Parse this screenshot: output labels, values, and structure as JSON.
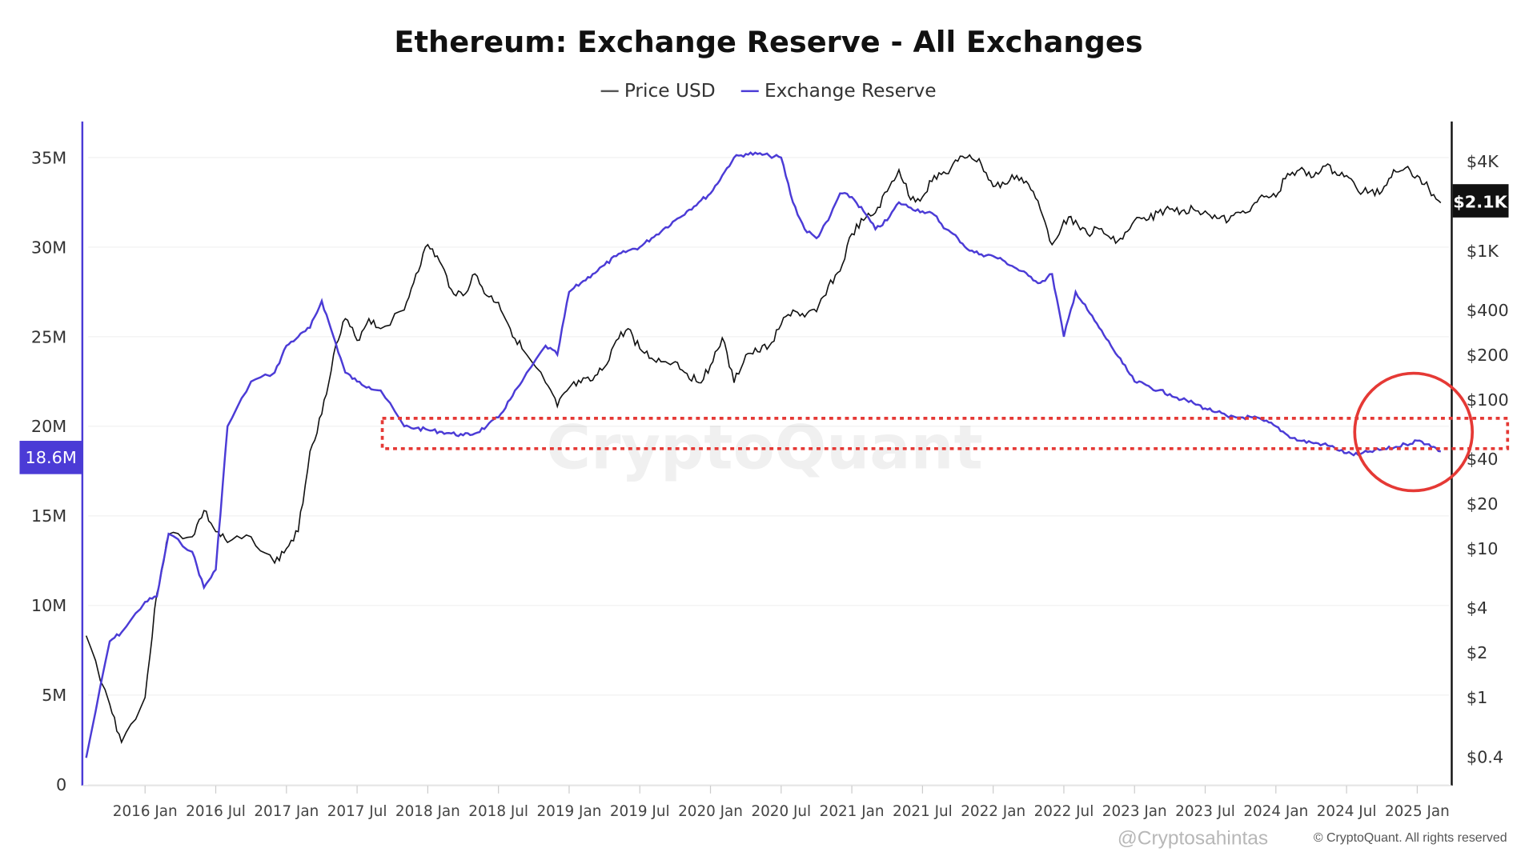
{
  "chart_data": {
    "type": "line",
    "title": "Ethereum: Exchange Reserve - All Exchanges",
    "legend_position": "top-center",
    "grid": "horizontal",
    "colors": {
      "price": "#111111",
      "reserve": "#4b3bd6",
      "annotation": "#e53935"
    },
    "legend": [
      {
        "name": "Price USD",
        "color": "#111111"
      },
      {
        "name": "Exchange Reserve",
        "color": "#4b3bd6"
      }
    ],
    "x_ticks": [
      "2016 Jan",
      "2016 Jul",
      "2017 Jan",
      "2017 Jul",
      "2018 Jan",
      "2018 Jul",
      "2019 Jan",
      "2019 Jul",
      "2020 Jan",
      "2020 Jul",
      "2021 Jan",
      "2021 Jul",
      "2022 Jan",
      "2022 Jul",
      "2023 Jan",
      "2023 Jul",
      "2024 Jan",
      "2024 Jul",
      "2025 Jan"
    ],
    "y_left": {
      "label": "",
      "ticks": [
        "0",
        "5M",
        "10M",
        "15M",
        "20M",
        "25M",
        "30M",
        "35M"
      ],
      "ylim": [
        0,
        35000000
      ]
    },
    "y_right": {
      "label": "",
      "scale": "log",
      "ticks": [
        "$0.4",
        "$1",
        "$2",
        "$4",
        "$10",
        "$20",
        "$40",
        "$100",
        "$200",
        "$400",
        "$1K",
        "$4K"
      ],
      "tick_values": [
        0.4,
        1,
        2,
        4,
        10,
        20,
        40,
        100,
        200,
        400,
        1000,
        4000
      ]
    },
    "current_labels": {
      "reserve": "18.6M",
      "price": "$2.1K"
    },
    "watermark": "CryptoQuant",
    "dates": [
      "2015-08",
      "2015-10",
      "2015-11",
      "2016-01",
      "2016-02",
      "2016-03",
      "2016-05",
      "2016-06",
      "2016-07",
      "2016-08",
      "2016-10",
      "2016-12",
      "2017-01",
      "2017-02",
      "2017-03",
      "2017-04",
      "2017-05",
      "2017-06",
      "2017-07",
      "2017-08",
      "2017-09",
      "2017-11",
      "2017-12",
      "2018-01",
      "2018-02",
      "2018-03",
      "2018-04",
      "2018-05",
      "2018-06",
      "2018-07",
      "2018-08",
      "2018-09",
      "2018-11",
      "2018-12",
      "2019-01",
      "2019-02",
      "2019-03",
      "2019-04",
      "2019-05",
      "2019-06",
      "2019-07",
      "2019-08",
      "2019-09",
      "2019-10",
      "2019-11",
      "2019-12",
      "2020-01",
      "2020-02",
      "2020-03",
      "2020-04",
      "2020-05",
      "2020-06",
      "2020-07",
      "2020-08",
      "2020-09",
      "2020-10",
      "2020-11",
      "2020-12",
      "2021-01",
      "2021-02",
      "2021-03",
      "2021-04",
      "2021-05",
      "2021-06",
      "2021-07",
      "2021-08",
      "2021-09",
      "2021-10",
      "2021-11",
      "2021-12",
      "2022-01",
      "2022-02",
      "2022-03",
      "2022-04",
      "2022-05",
      "2022-06",
      "2022-07",
      "2022-08",
      "2022-09",
      "2022-10",
      "2022-11",
      "2022-12",
      "2023-01",
      "2023-02",
      "2023-03",
      "2023-04",
      "2023-05",
      "2023-06",
      "2023-07",
      "2023-08",
      "2023-09",
      "2023-10",
      "2023-11",
      "2023-12",
      "2024-01",
      "2024-02",
      "2024-03",
      "2024-04",
      "2024-05",
      "2024-06",
      "2024-07",
      "2024-08",
      "2024-09",
      "2024-10",
      "2024-11",
      "2024-12",
      "2025-01",
      "2025-02",
      "2025-03"
    ],
    "series": [
      {
        "name": "Exchange Reserve",
        "axis": "left",
        "values": [
          1.5,
          8,
          8.5,
          10.2,
          10.5,
          14,
          13,
          11,
          12,
          20,
          22.5,
          23,
          24.5,
          25,
          25.5,
          27,
          25,
          23,
          22.5,
          22.2,
          22,
          20,
          19.9,
          19.8,
          19.7,
          19.6,
          19.5,
          19.6,
          20,
          20.5,
          21.5,
          22.5,
          24.5,
          24,
          27.5,
          28,
          28.5,
          29,
          29.5,
          29.8,
          30,
          30.5,
          31,
          31.5,
          32,
          32.5,
          33,
          34,
          35,
          35.2,
          35.2,
          35.1,
          35,
          32.5,
          31,
          30.5,
          31.5,
          33,
          32.8,
          32,
          31,
          31.5,
          32.5,
          32.2,
          32,
          31.8,
          31,
          30.5,
          29.8,
          29.6,
          29.5,
          29.2,
          28.8,
          28.4,
          28,
          28.5,
          25,
          27.5,
          26.5,
          25.5,
          24.5,
          23.5,
          22.5,
          22.3,
          22,
          21.8,
          21.5,
          21.3,
          21,
          20.8,
          20.5,
          20.5,
          20.5,
          20.3,
          20,
          19.5,
          19.2,
          19.1,
          19,
          18.8,
          18.5,
          18.4,
          18.6,
          18.7,
          18.8,
          19,
          19.2,
          19,
          18.6
        ],
        "unit": "millions ETH"
      },
      {
        "name": "Price USD",
        "axis": "right",
        "values": [
          2.6,
          0.9,
          0.5,
          1,
          5,
          12.5,
          12,
          18,
          13,
          11,
          12,
          8,
          10,
          13,
          45,
          80,
          200,
          350,
          250,
          350,
          300,
          400,
          700,
          1100,
          850,
          550,
          500,
          700,
          500,
          450,
          300,
          220,
          130,
          90,
          120,
          130,
          135,
          165,
          250,
          300,
          220,
          190,
          180,
          180,
          150,
          130,
          170,
          260,
          130,
          200,
          210,
          230,
          320,
          400,
          360,
          390,
          580,
          730,
          1300,
          1600,
          1800,
          2500,
          3500,
          2200,
          2300,
          3200,
          3300,
          4000,
          4400,
          3800,
          2700,
          2800,
          3200,
          2800,
          1900,
          1100,
          1600,
          1600,
          1300,
          1400,
          1200,
          1200,
          1600,
          1600,
          1800,
          1900,
          1850,
          1900,
          1850,
          1650,
          1600,
          1800,
          2000,
          2300,
          2300,
          3300,
          3500,
          3100,
          3700,
          3400,
          3200,
          2500,
          2500,
          2500,
          3500,
          3600,
          3200,
          2600,
          2100
        ],
        "unit": "USD"
      }
    ]
  },
  "footer": {
    "copyright": "© CryptoQuant. All rights reserved",
    "handle": "@Cryptosahintas"
  }
}
